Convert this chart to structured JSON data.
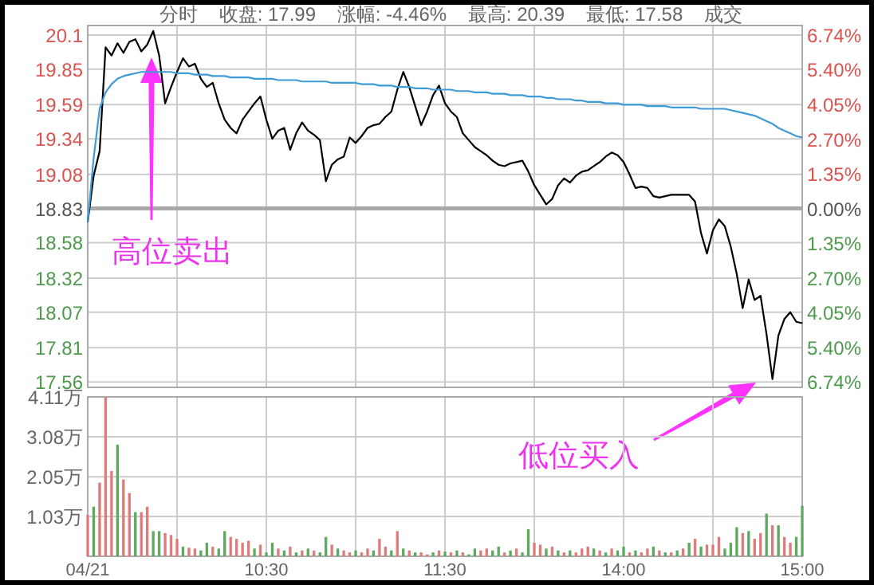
{
  "chart_data": [
    {
      "type": "line",
      "subtitle": "分时    收盘: 17.99    涨幅: -4.46%    最高: 20.39    最低: 17.58    成交",
      "categories": [
        null,
        null,
        null,
        null,
        null,
        null,
        null,
        null,
        null,
        null,
        null,
        null,
        null,
        null,
        null,
        null,
        null,
        null,
        null,
        null,
        null,
        null,
        null,
        null,
        null,
        null,
        null,
        null,
        null,
        null,
        null,
        null,
        null,
        null,
        null,
        null,
        null,
        null,
        null,
        null,
        null,
        null,
        null,
        null,
        null,
        null,
        null,
        null,
        null,
        null,
        null,
        null,
        null,
        null,
        null,
        null,
        null,
        null,
        null,
        null,
        null,
        null,
        null,
        null,
        null,
        null,
        null,
        null,
        null,
        null,
        null,
        null,
        null,
        null,
        null,
        null,
        null,
        null,
        null,
        null,
        null,
        null,
        null,
        null,
        null,
        null,
        null,
        null,
        null,
        null,
        null,
        null,
        null,
        null,
        null,
        null,
        null,
        null,
        null,
        null,
        null,
        null,
        null,
        null,
        null,
        null,
        null,
        null,
        null,
        null,
        null,
        null,
        null,
        null,
        null,
        null,
        null,
        null,
        null,
        null,
        null
      ],
      "series": [
        {
          "color": "#000000",
          "values": [
            18.73,
            19.07,
            19.25,
            20.01,
            19.95,
            20.04,
            19.97,
            20.05,
            20.07,
            19.98,
            20.03,
            20.13,
            19.95,
            19.6,
            19.72,
            19.83,
            19.93,
            19.87,
            19.89,
            19.78,
            19.72,
            19.75,
            19.6,
            19.48,
            19.42,
            19.38,
            19.48,
            19.54,
            19.6,
            19.65,
            19.48,
            19.34,
            19.4,
            19.42,
            19.26,
            19.38,
            19.46,
            19.4,
            19.37,
            19.33,
            19.03,
            19.15,
            19.19,
            19.21,
            19.35,
            19.31,
            19.36,
            19.42,
            19.44,
            19.45,
            19.5,
            19.54,
            19.7,
            19.83,
            19.72,
            19.58,
            19.44,
            19.54,
            19.66,
            19.73,
            19.6,
            19.54,
            19.5,
            19.38,
            19.33,
            19.28,
            19.25,
            19.22,
            19.18,
            19.15,
            19.14,
            19.16,
            19.17,
            19.18,
            19.1,
            19.0,
            18.93,
            18.86,
            18.9,
            19.0,
            19.05,
            19.02,
            19.07,
            19.1,
            19.11,
            19.14,
            19.17,
            19.21,
            19.24,
            19.22,
            19.17,
            19.08,
            18.98,
            18.99,
            18.98,
            18.92,
            18.91,
            18.92,
            18.93,
            18.93,
            18.93,
            18.93,
            18.88,
            18.65,
            18.5,
            18.67,
            18.75,
            18.7,
            18.55,
            18.35,
            18.1,
            18.31,
            18.16,
            18.19,
            17.91,
            17.58,
            17.9,
            18.02,
            18.07,
            18.0,
            17.99
          ]
        },
        {
          "color": "#3d9bd6",
          "values": [
            18.73,
            19.2,
            19.56,
            19.68,
            19.74,
            19.78,
            19.8,
            19.81,
            19.82,
            19.83,
            19.83,
            19.83,
            19.83,
            19.83,
            19.83,
            19.82,
            19.82,
            19.82,
            19.81,
            19.81,
            19.81,
            19.8,
            19.8,
            19.8,
            19.79,
            19.79,
            19.79,
            19.79,
            19.78,
            19.78,
            19.78,
            19.78,
            19.77,
            19.77,
            19.77,
            19.77,
            19.76,
            19.76,
            19.76,
            19.76,
            19.76,
            19.75,
            19.75,
            19.75,
            19.75,
            19.75,
            19.74,
            19.74,
            19.74,
            19.73,
            19.73,
            19.73,
            19.72,
            19.72,
            19.72,
            19.71,
            19.71,
            19.71,
            19.7,
            19.7,
            19.7,
            19.7,
            19.69,
            19.69,
            19.69,
            19.68,
            19.68,
            19.68,
            19.67,
            19.67,
            19.67,
            19.66,
            19.66,
            19.66,
            19.65,
            19.65,
            19.65,
            19.64,
            19.64,
            19.63,
            19.63,
            19.63,
            19.62,
            19.62,
            19.61,
            19.61,
            19.61,
            19.6,
            19.6,
            19.6,
            19.59,
            19.59,
            19.59,
            19.59,
            19.58,
            19.58,
            19.58,
            19.58,
            19.57,
            19.57,
            19.57,
            19.57,
            19.57,
            19.56,
            19.56,
            19.56,
            19.56,
            19.56,
            19.55,
            19.54,
            19.53,
            19.52,
            19.51,
            19.49,
            19.47,
            19.45,
            19.42,
            19.4,
            19.38,
            19.36,
            19.35
          ]
        }
      ],
      "ylim": [
        17.52,
        20.17
      ],
      "yticks": [
        17.56,
        17.81,
        18.07,
        18.32,
        18.58,
        18.83,
        19.08,
        19.34,
        19.59,
        19.85,
        20.1
      ],
      "y2lim": [
        -6.96,
        7.12
      ],
      "y2ticks": [
        {
          "value": -6.74,
          "label": "6.74%"
        },
        {
          "value": -5.4,
          "label": "5.40%"
        },
        {
          "value": -4.05,
          "label": "4.05%"
        },
        {
          "value": -2.7,
          "label": "2.70%"
        },
        {
          "value": -1.35,
          "label": "1.35%"
        },
        {
          "value": 0,
          "label": "0.00%"
        },
        {
          "value": 1.35,
          "label": "1.35%"
        },
        {
          "value": 2.7,
          "label": "2.70%"
        },
        {
          "value": 4.05,
          "label": "4.05%"
        },
        {
          "value": 5.4,
          "label": "5.40%"
        },
        {
          "value": 6.74,
          "label": "6.74%"
        }
      ],
      "ref_lines": [
        {
          "axis": "y",
          "value": 18.83,
          "color": "#aaaaaa"
        }
      ],
      "grid": true,
      "tick_labels": "y",
      "marker": "none",
      "annotations": [
        "高位卖出",
        "低位买入"
      ]
    },
    {
      "type": "bar",
      "categories": [
        "04/21",
        null,
        null,
        null,
        null,
        null,
        null,
        null,
        null,
        null,
        null,
        null,
        null,
        null,
        null,
        null,
        null,
        null,
        null,
        null,
        null,
        null,
        null,
        null,
        null,
        null,
        null,
        null,
        null,
        null,
        "10:30",
        null,
        null,
        null,
        null,
        null,
        null,
        null,
        null,
        null,
        null,
        null,
        null,
        null,
        null,
        null,
        null,
        null,
        null,
        null,
        null,
        null,
        null,
        null,
        null,
        null,
        null,
        null,
        null,
        null,
        "11:30",
        null,
        null,
        null,
        null,
        null,
        null,
        null,
        null,
        null,
        null,
        null,
        null,
        null,
        null,
        null,
        null,
        null,
        null,
        null,
        null,
        null,
        null,
        null,
        null,
        null,
        null,
        null,
        null,
        null,
        "14:00",
        null,
        null,
        null,
        null,
        null,
        null,
        null,
        null,
        null,
        null,
        null,
        null,
        null,
        null,
        null,
        null,
        null,
        null,
        null,
        null,
        null,
        null,
        null,
        null,
        null,
        null,
        null,
        null,
        null,
        "15:00"
      ],
      "values": [
        1.07,
        1.28,
        1.9,
        4.1,
        2.2,
        2.88,
        1.98,
        1.63,
        1.14,
        1.14,
        1.28,
        0.65,
        0.65,
        0.6,
        0.55,
        0.45,
        0.25,
        0.22,
        0.2,
        0.15,
        0.35,
        0.25,
        0.2,
        0.65,
        0.5,
        0.45,
        0.35,
        0.4,
        0.2,
        0.3,
        0.1,
        0.35,
        0.2,
        0.15,
        0.25,
        0.1,
        0.15,
        0.2,
        0.15,
        0.1,
        0.5,
        0.3,
        0.2,
        0.15,
        0.1,
        0.15,
        0.1,
        0.2,
        0.15,
        0.45,
        0.25,
        0.15,
        0.65,
        0.2,
        0.15,
        0.1,
        0.1,
        0.05,
        0.1,
        0.15,
        0.12,
        0.1,
        0.15,
        0.1,
        0.05,
        0.2,
        0.15,
        0.2,
        0.15,
        0.25,
        0.1,
        0.15,
        0.2,
        0.1,
        0.7,
        0.35,
        0.3,
        0.2,
        0.25,
        0.15,
        0.1,
        0.15,
        0.1,
        0.2,
        0.25,
        0.2,
        0.15,
        0.1,
        0.2,
        0.15,
        0.25,
        0.1,
        0.15,
        0.1,
        0.2,
        0.25,
        0.15,
        0.1,
        0.1,
        0.15,
        0.2,
        0.35,
        0.45,
        0.25,
        0.3,
        0.3,
        0.5,
        0.2,
        0.35,
        0.75,
        0.6,
        0.65,
        0.45,
        0.6,
        1.1,
        0.8,
        0.8,
        0.5,
        0.35,
        0.5,
        1.3
      ],
      "colors": [
        "#e07b7b",
        "#5fa85f",
        "#e07b7b",
        "#e07b7b",
        "#e07b7b",
        "#5fa85f",
        "#e07b7b",
        "#e07b7b",
        "#5fa85f",
        "#e07b7b",
        "#e07b7b",
        "#5fa85f",
        "#5fa85f",
        "#e07b7b",
        "#e07b7b",
        "#e07b7b",
        "#5fa85f",
        "#e07b7b",
        "#e07b7b",
        "#5fa85f",
        "#5fa85f",
        "#e07b7b",
        "#5fa85f",
        "#5fa85f",
        "#e07b7b",
        "#e07b7b",
        "#e07b7b",
        "#e07b7b",
        "#5fa85f",
        "#e07b7b",
        "#5fa85f",
        "#5fa85f",
        "#e07b7b",
        "#5fa85f",
        "#e07b7b",
        "#5fa85f",
        "#e07b7b",
        "#5fa85f",
        "#e07b7b",
        "#5fa85f",
        "#5fa85f",
        "#e07b7b",
        "#5fa85f",
        "#e07b7b",
        "#e07b7b",
        "#5fa85f",
        "#e07b7b",
        "#e07b7b",
        "#5fa85f",
        "#e07b7b",
        "#e07b7b",
        "#5fa85f",
        "#e07b7b",
        "#5fa85f",
        "#e07b7b",
        "#5fa85f",
        "#e07b7b",
        "#e07b7b",
        "#5fa85f",
        "#e07b7b",
        "#5fa85f",
        "#e07b7b",
        "#5fa85f",
        "#e07b7b",
        "#5fa85f",
        "#5fa85f",
        "#e07b7b",
        "#e07b7b",
        "#5fa85f",
        "#5fa85f",
        "#e07b7b",
        "#5fa85f",
        "#e07b7b",
        "#5fa85f",
        "#5fa85f",
        "#e07b7b",
        "#e07b7b",
        "#5fa85f",
        "#e07b7b",
        "#5fa85f",
        "#e07b7b",
        "#5fa85f",
        "#e07b7b",
        "#e07b7b",
        "#e07b7b",
        "#5fa85f",
        "#e07b7b",
        "#5fa85f",
        "#e07b7b",
        "#5fa85f",
        "#5fa85f",
        "#e07b7b",
        "#5fa85f",
        "#e07b7b",
        "#e07b7b",
        "#5fa85f",
        "#e07b7b",
        "#5fa85f",
        "#e07b7b",
        "#5fa85f",
        "#e07b7b",
        "#5fa85f",
        "#e07b7b",
        "#5fa85f",
        "#e07b7b",
        "#e07b7b",
        "#e07b7b",
        "#5fa85f",
        "#5fa85f",
        "#5fa85f",
        "#e07b7b",
        "#5fa85f",
        "#e07b7b",
        "#e07b7b",
        "#5fa85f",
        "#e07b7b",
        "#5fa85f",
        "#e07b7b",
        "#e07b7b",
        "#5fa85f",
        "#5fa85f"
      ],
      "ylim": [
        0,
        4.11
      ],
      "yticks": [
        {
          "value": 1.03,
          "label": "1.03万"
        },
        {
          "value": 2.05,
          "label": "2.05万"
        },
        {
          "value": 3.08,
          "label": "3.08万"
        },
        {
          "value": 4.11,
          "label": "4.11万"
        }
      ],
      "grid": true
    }
  ]
}
